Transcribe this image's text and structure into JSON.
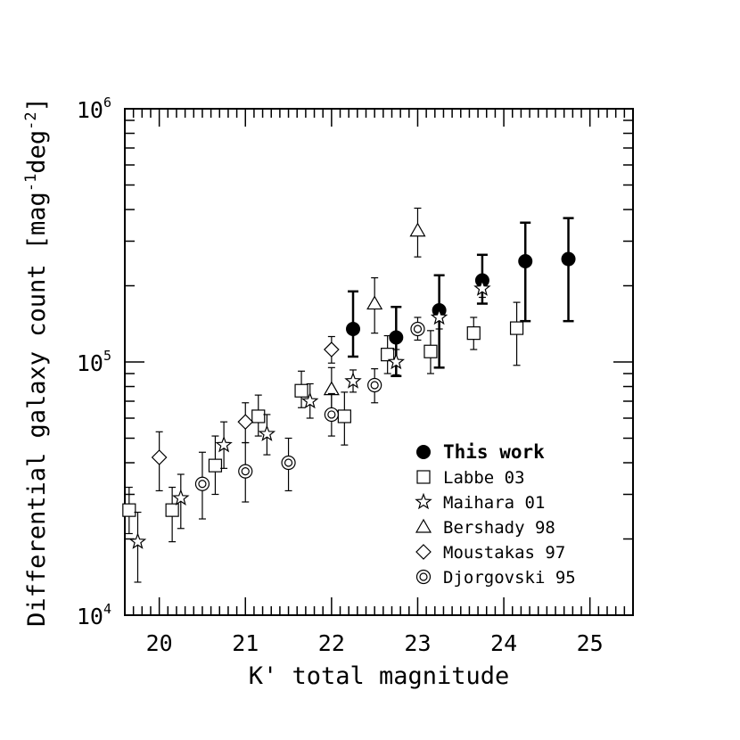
{
  "chart_data": {
    "type": "scatter",
    "title": "",
    "xlabel": "K' total magnitude",
    "ylabel": {
      "base": "Differential galaxy count [mag",
      "sup1": "-1",
      "mid": "deg",
      "sup2": "-2",
      "end": "]"
    },
    "xlim": [
      19.6,
      25.5
    ],
    "ylim": [
      10000,
      1000000
    ],
    "yscale": "log",
    "xticks": [
      20,
      21,
      22,
      23,
      24,
      25
    ],
    "xtick_labels": [
      "20",
      "21",
      "22",
      "23",
      "24",
      "25"
    ],
    "yticks": [
      {
        "value": 10000,
        "base": "10",
        "exp": "4"
      },
      {
        "value": 100000,
        "base": "10",
        "exp": "5"
      },
      {
        "value": 1000000,
        "base": "10",
        "exp": "6"
      }
    ],
    "legend_position": "lower-right",
    "series": [
      {
        "name": "This work",
        "marker": "filled-circle",
        "bold": true,
        "points": [
          {
            "x": 22.25,
            "y": 135000,
            "lo": 105000,
            "hi": 190000
          },
          {
            "x": 22.75,
            "y": 125000,
            "lo": 88000,
            "hi": 165000
          },
          {
            "x": 23.25,
            "y": 160000,
            "lo": 95000,
            "hi": 220000
          },
          {
            "x": 23.75,
            "y": 210000,
            "lo": 170000,
            "hi": 265000
          },
          {
            "x": 24.25,
            "y": 250000,
            "lo": 145000,
            "hi": 355000
          },
          {
            "x": 24.75,
            "y": 255000,
            "lo": 145000,
            "hi": 370000
          }
        ]
      },
      {
        "name": "Labbe 03",
        "marker": "square",
        "points": [
          {
            "x": 19.65,
            "y": 26000,
            "lo": 21000,
            "hi": 32000
          },
          {
            "x": 20.15,
            "y": 26000,
            "lo": 19500,
            "hi": 32000
          },
          {
            "x": 20.65,
            "y": 39000,
            "lo": 30000,
            "hi": 51000
          },
          {
            "x": 21.15,
            "y": 61000,
            "lo": 51000,
            "hi": 74000
          },
          {
            "x": 21.65,
            "y": 77000,
            "lo": 66000,
            "hi": 92000
          },
          {
            "x": 22.15,
            "y": 61000,
            "lo": 47000,
            "hi": 76000
          },
          {
            "x": 22.65,
            "y": 107000,
            "lo": 90000,
            "hi": 127000
          },
          {
            "x": 23.15,
            "y": 110000,
            "lo": 90000,
            "hi": 133000
          },
          {
            "x": 23.65,
            "y": 130000,
            "lo": 112000,
            "hi": 150000
          },
          {
            "x": 24.15,
            "y": 136000,
            "lo": 97000,
            "hi": 172000
          }
        ]
      },
      {
        "name": "Maihara 01",
        "marker": "star",
        "points": [
          {
            "x": 19.75,
            "y": 19500,
            "lo": 13500,
            "hi": 25500
          },
          {
            "x": 20.25,
            "y": 29000,
            "lo": 22000,
            "hi": 36000
          },
          {
            "x": 20.75,
            "y": 47000,
            "lo": 38000,
            "hi": 58000
          },
          {
            "x": 21.25,
            "y": 52000,
            "lo": 43000,
            "hi": 62000
          },
          {
            "x": 21.75,
            "y": 70000,
            "lo": 60000,
            "hi": 82000
          },
          {
            "x": 22.25,
            "y": 84000,
            "lo": 76000,
            "hi": 93000
          },
          {
            "x": 22.75,
            "y": 100000,
            "lo": 89000,
            "hi": 112000
          },
          {
            "x": 23.25,
            "y": 150000,
            "lo": 135000,
            "hi": 165000
          },
          {
            "x": 23.75,
            "y": 195000,
            "lo": 180000,
            "hi": 210000
          }
        ]
      },
      {
        "name": "Bershady 98",
        "marker": "triangle",
        "points": [
          {
            "x": 22.0,
            "y": 78000,
            "lo": 62000,
            "hi": 95000
          },
          {
            "x": 22.5,
            "y": 170000,
            "lo": 130000,
            "hi": 215000
          },
          {
            "x": 23.0,
            "y": 330000,
            "lo": 260000,
            "hi": 405000
          }
        ]
      },
      {
        "name": "Moustakas 97",
        "marker": "diamond",
        "points": [
          {
            "x": 20.0,
            "y": 42000,
            "lo": 31000,
            "hi": 53000
          },
          {
            "x": 21.0,
            "y": 58000,
            "lo": 48000,
            "hi": 69000
          },
          {
            "x": 22.0,
            "y": 112000,
            "lo": 99000,
            "hi": 126000
          }
        ]
      },
      {
        "name": "Djorgovski 95",
        "marker": "double-circle",
        "points": [
          {
            "x": 20.5,
            "y": 33000,
            "lo": 24000,
            "hi": 44000
          },
          {
            "x": 21.0,
            "y": 37000,
            "lo": 28000,
            "hi": 48000
          },
          {
            "x": 21.5,
            "y": 40000,
            "lo": 31000,
            "hi": 50000
          },
          {
            "x": 22.0,
            "y": 62000,
            "lo": 51000,
            "hi": 75000
          },
          {
            "x": 22.5,
            "y": 81000,
            "lo": 69000,
            "hi": 94000
          },
          {
            "x": 23.0,
            "y": 135000,
            "lo": 122000,
            "hi": 150000
          }
        ]
      }
    ]
  }
}
